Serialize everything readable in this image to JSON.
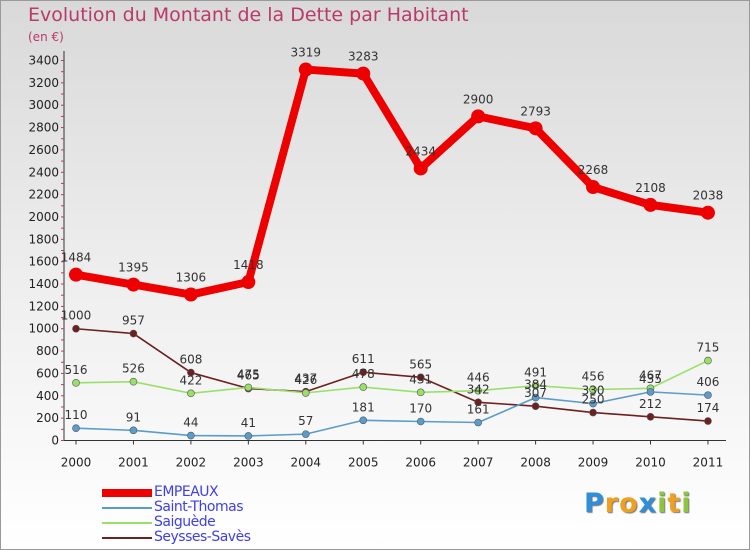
{
  "title": "Evolution du Montant de la Dette par Habitant",
  "unit": "(en €)",
  "logo": {
    "letters": [
      {
        "ch": "P",
        "color": "#2f8fd8"
      },
      {
        "ch": "r",
        "color": "#f0a020"
      },
      {
        "ch": "o",
        "color": "#f0a020"
      },
      {
        "ch": "x",
        "color": "#2f8fd8"
      },
      {
        "ch": "i",
        "color": "#8cc63f"
      },
      {
        "ch": "t",
        "color": "#f0a020"
      },
      {
        "ch": "i",
        "color": "#8cc63f"
      }
    ]
  },
  "chart_data": {
    "type": "line",
    "title": "Evolution du Montant de la Dette par Habitant",
    "ylabel": "(en €)",
    "xlabel": "",
    "x": [
      "2000",
      "2001",
      "2002",
      "2003",
      "2004",
      "2005",
      "2006",
      "2007",
      "2008",
      "2009",
      "2010",
      "2011"
    ],
    "ylim": [
      0,
      3400
    ],
    "yticks": [
      0,
      200,
      400,
      600,
      800,
      1000,
      1200,
      1400,
      1600,
      1800,
      2000,
      2200,
      2400,
      2600,
      2800,
      3000,
      3200,
      3400
    ],
    "grid": false,
    "legend_position": "bottom-left",
    "series": [
      {
        "name": "EMPEAUX",
        "color": "#ee0000",
        "values": [
          1484,
          1395,
          1306,
          1418,
          3319,
          3283,
          2434,
          2900,
          2793,
          2268,
          2108,
          2038
        ]
      },
      {
        "name": "Saint-Thomas",
        "color": "#5a9ccc",
        "values": [
          110,
          91,
          44,
          41,
          57,
          181,
          170,
          161,
          384,
          330,
          435,
          406
        ]
      },
      {
        "name": "Saiguède",
        "color": "#99e06a",
        "values": [
          516,
          526,
          422,
          475,
          426,
          478,
          431,
          446,
          491,
          456,
          467,
          715
        ]
      },
      {
        "name": "Seysses-Savès",
        "color": "#6e1f1f",
        "values": [
          1000,
          957,
          608,
          465,
          437,
          611,
          565,
          342,
          307,
          250,
          212,
          174
        ]
      }
    ],
    "data_labels": [
      [
        "1484",
        "1395",
        "1306",
        "1418",
        "3319",
        "3283",
        "2434",
        "2900",
        "2793",
        "2268",
        "2108",
        "2038"
      ],
      [
        "110",
        "91",
        "44",
        "41",
        "57",
        "181",
        "170",
        "161",
        "384",
        "330",
        "435",
        "406"
      ],
      [
        "516",
        "526",
        "422",
        "475",
        "426",
        "478",
        "431",
        "446",
        "491",
        "456",
        "467",
        "715"
      ],
      [
        "1000",
        "957",
        "608",
        "465",
        "437",
        "611",
        "565",
        "342",
        "307",
        "250",
        "212",
        "174"
      ]
    ]
  }
}
